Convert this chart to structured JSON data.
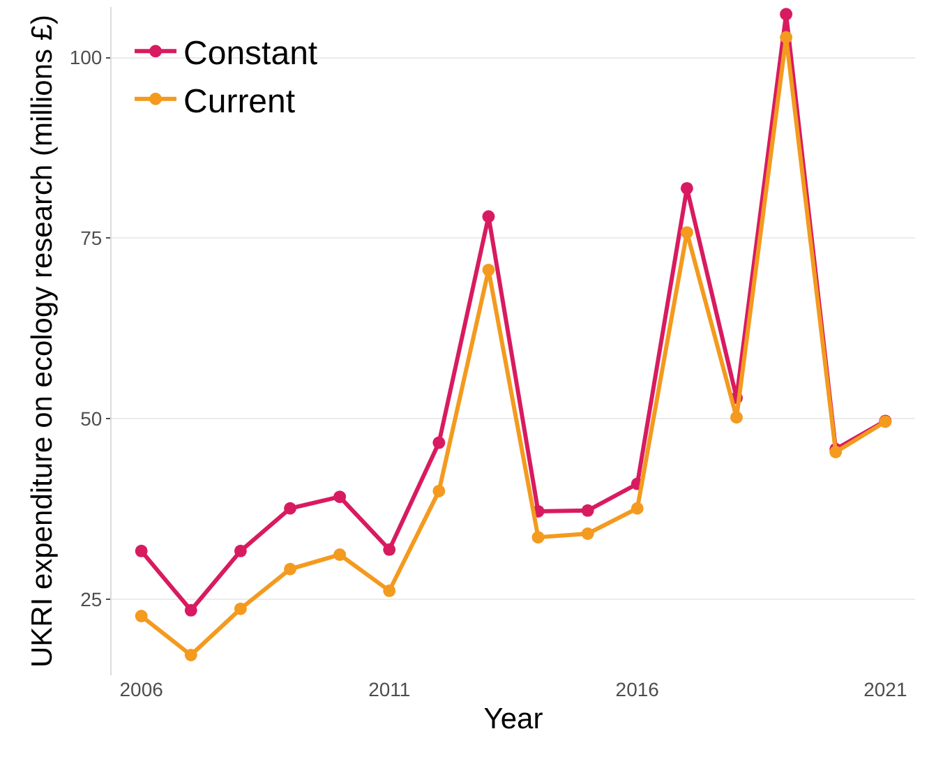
{
  "chart_data": {
    "type": "line",
    "xlabel": "Year",
    "ylabel": "UKRI expenditure on ecology research (millions £)",
    "x": [
      2006,
      2007,
      2008,
      2009,
      2010,
      2011,
      2012,
      2013,
      2014,
      2015,
      2016,
      2017,
      2018,
      2019,
      2020,
      2021
    ],
    "series": [
      {
        "name": "Constant",
        "color": "#d81b60",
        "values": [
          31.7,
          23.5,
          31.7,
          37.6,
          39.2,
          31.9,
          46.7,
          78.0,
          37.2,
          37.3,
          41.0,
          81.9,
          52.9,
          106.0,
          45.8,
          49.7
        ]
      },
      {
        "name": "Current",
        "color": "#f39a1f",
        "values": [
          22.7,
          17.3,
          23.7,
          29.2,
          31.2,
          26.2,
          40.0,
          70.6,
          33.6,
          34.1,
          37.6,
          75.8,
          50.2,
          102.8,
          45.4,
          49.6
        ]
      }
    ],
    "xlim": [
      2005.4,
      2021.6
    ],
    "xticks": [
      2006,
      2011,
      2016,
      2021
    ],
    "ylim": [
      14.5,
      107
    ],
    "yticks": [
      25,
      50,
      75,
      100
    ],
    "grid": "y",
    "legend": "top left",
    "marker": "circle",
    "line_style": "solid"
  }
}
